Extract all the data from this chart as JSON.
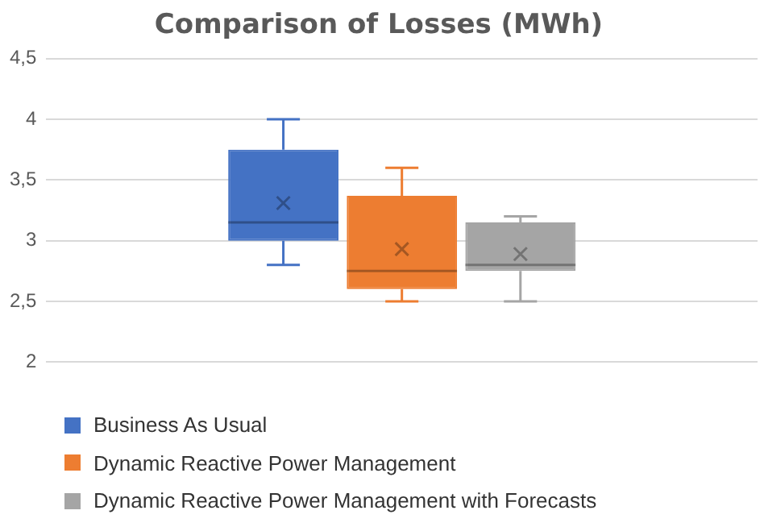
{
  "chart_data": {
    "type": "box",
    "title": "Comparison of Losses (MWh)",
    "categories": [
      null
    ],
    "series": [
      {
        "name": "Business As Usual",
        "color": "#4472c4",
        "boxes": [
          {
            "low": 2.8,
            "q1": 3.0,
            "median": 3.15,
            "q3": 3.75,
            "high": 4.0,
            "mean": 3.31
          }
        ]
      },
      {
        "name": "Dynamic Reactive Power Management",
        "color": "#ed7d31",
        "boxes": [
          {
            "low": 2.5,
            "q1": 2.6,
            "median": 2.75,
            "q3": 3.37,
            "high": 3.6,
            "mean": 2.93
          }
        ]
      },
      {
        "name": "Dynamic Reactive Power Management with Forecasts",
        "color": "#a5a5a5",
        "boxes": [
          {
            "low": 2.5,
            "q1": 2.75,
            "median": 2.8,
            "q3": 3.15,
            "high": 3.2,
            "mean": 2.89
          }
        ]
      }
    ],
    "ylim": [
      2,
      4.5
    ],
    "yticks": [
      {
        "value": 2,
        "label": "2"
      },
      {
        "value": 2.5,
        "label": "2,5"
      },
      {
        "value": 3,
        "label": "3"
      },
      {
        "value": 3.5,
        "label": "3,5"
      },
      {
        "value": 4,
        "label": "4"
      },
      {
        "value": 4.5,
        "label": "4,5"
      }
    ],
    "grid": "y",
    "legend": "bottom"
  }
}
